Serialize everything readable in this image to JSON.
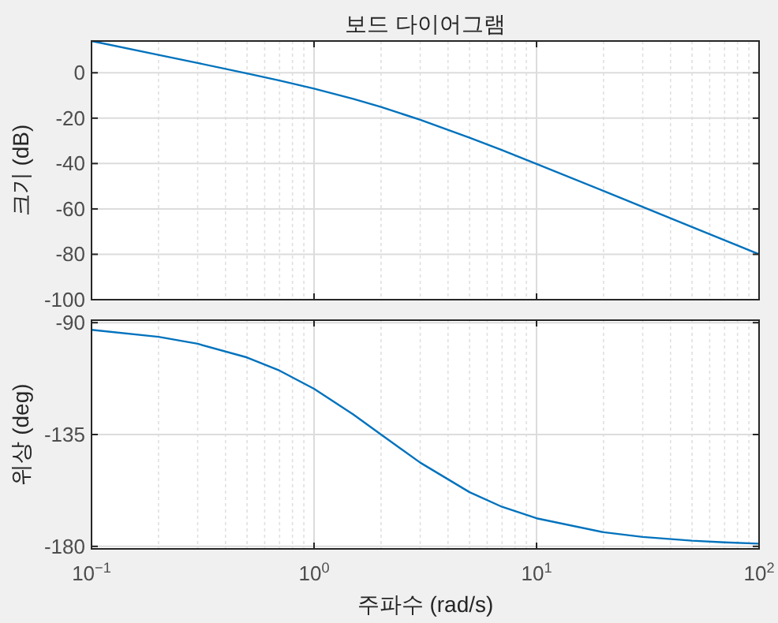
{
  "chart_data": [
    {
      "type": "line",
      "title": "보드 다이어그램",
      "ylabel": "크기 (dB)",
      "x": [
        0.1,
        0.2,
        0.3,
        0.5,
        0.7,
        1,
        1.5,
        2,
        3,
        5,
        7,
        10,
        20,
        30,
        50,
        70,
        100
      ],
      "series": [
        {
          "color": "#0072bd",
          "values": [
            14.0,
            7.9,
            4.3,
            -0.3,
            -3.4,
            -7.0,
            -11.5,
            -15.1,
            -20.7,
            -28.6,
            -34.1,
            -40.2,
            -52.1,
            -59.1,
            -68.0,
            -73.8,
            -80.0
          ]
        }
      ],
      "log": "x",
      "xlim": [
        0.1,
        100
      ],
      "ylim": [
        -100,
        14
      ],
      "yticks": [
        -100,
        -80,
        -60,
        -40,
        -20,
        0
      ],
      "xticks": [
        {
          "value": 0.1,
          "label": null
        },
        {
          "value": 1,
          "label": null
        },
        {
          "value": 10,
          "label": null
        },
        {
          "value": 100,
          "label": null
        }
      ],
      "tick_labels": "y",
      "grid": true
    },
    {
      "type": "line",
      "ylabel": "위상 (deg)",
      "xlabel": "주파수  (rad/s)",
      "x": [
        0.1,
        0.2,
        0.3,
        0.5,
        0.7,
        1,
        1.5,
        2,
        3,
        5,
        7,
        10,
        20,
        30,
        50,
        70,
        100
      ],
      "series": [
        {
          "color": "#0072bd",
          "values": [
            -92.9,
            -95.7,
            -98.5,
            -104.0,
            -109.3,
            -116.6,
            -126.9,
            -135.0,
            -146.3,
            -158.2,
            -164.1,
            -168.7,
            -174.3,
            -176.2,
            -177.7,
            -178.4,
            -178.9
          ]
        }
      ],
      "log": "x",
      "xlim": [
        0.1,
        100
      ],
      "ylim": [
        -181,
        -89
      ],
      "yticks": [
        -180,
        -135,
        -90
      ],
      "xticks": [
        {
          "value": 0.1,
          "label": "10$^{−1}$"
        },
        {
          "value": 1,
          "label": "10$^{0}$"
        },
        {
          "value": 10,
          "label": "10$^{1}$"
        },
        {
          "value": 100,
          "label": "10$^{2}$"
        }
      ],
      "grid": true
    }
  ]
}
